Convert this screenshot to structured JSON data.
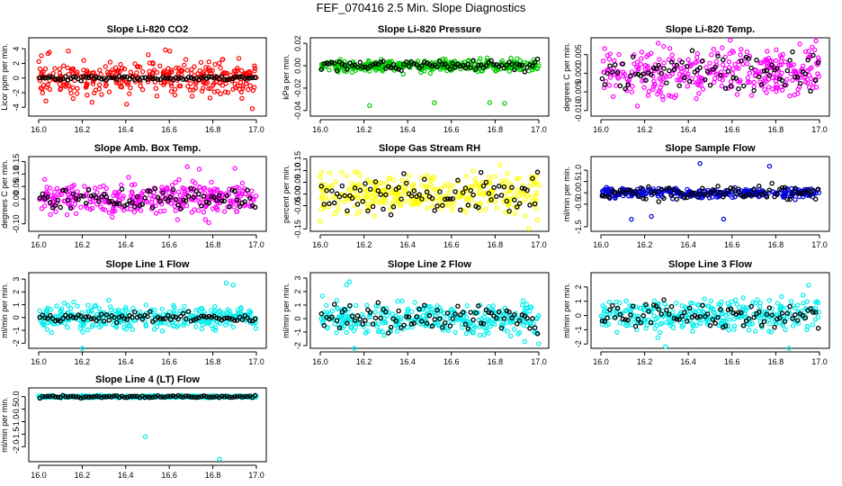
{
  "figure": {
    "title": "FEF_070416  2.5 Min. Slope Diagnostics"
  },
  "chart_data": [
    {
      "type": "scatter",
      "title": "Slope Li-820 CO2",
      "ylabel": "Licor ppm per min.",
      "xlim": [
        16.0,
        17.0
      ],
      "ylim": [
        -5.2,
        5.5
      ],
      "x_ticks": [
        "16.0",
        "16.2",
        "16.4",
        "16.6",
        "16.8",
        "17.0"
      ],
      "y_ticks": [
        "-4",
        "-2",
        "0",
        "2",
        "4"
      ],
      "y_tick_values": [
        -4,
        -2,
        0,
        2,
        4
      ],
      "color": "#ff0000",
      "spread": 1.8,
      "outlier_count": 5,
      "outlier_amp": 4.2,
      "black_spread": 0.18,
      "seed": 11
    },
    {
      "type": "scatter",
      "title": "Slope Li-820 Pressure",
      "ylabel": "kPa per min.",
      "xlim": [
        16.0,
        17.0
      ],
      "ylim": [
        -0.045,
        0.025
      ],
      "x_ticks": [
        "16.0",
        "16.2",
        "16.4",
        "16.6",
        "16.8",
        "17.0"
      ],
      "y_ticks": [
        "-0.04",
        "-0.02",
        "0.00",
        "0.02"
      ],
      "y_tick_values": [
        -0.04,
        -0.02,
        0.0,
        0.02
      ],
      "color": "#00cc00",
      "spread": 0.004,
      "outlier_count": 4,
      "outlier_amp": 0.04,
      "black_spread": 0.004,
      "seed": 23
    },
    {
      "type": "scatter",
      "title": "Slope Li-820 Temp.",
      "ylabel": "degrees C per min.",
      "xlim": [
        16.0,
        17.0
      ],
      "ylim": [
        -0.0115,
        0.0095
      ],
      "x_ticks": [
        "16.0",
        "16.2",
        "16.4",
        "16.6",
        "16.8",
        "17.0"
      ],
      "y_ticks": [
        "-0.010",
        "-0.005",
        "0.000",
        "0.005"
      ],
      "y_tick_values": [
        -0.01,
        -0.005,
        0.0,
        0.005
      ],
      "color": "#ff00ff",
      "spread": 0.0045,
      "outlier_count": 3,
      "outlier_amp": 0.009,
      "black_spread": 0.0035,
      "seed": 37
    },
    {
      "type": "scatter",
      "title": "Slope Amb. Box Temp.",
      "ylabel": "degrees C per min.",
      "xlim": [
        16.0,
        17.0
      ],
      "ylim": [
        -0.13,
        0.17
      ],
      "x_ticks": [
        "16.0",
        "16.2",
        "16.4",
        "16.6",
        "16.8",
        "17.0"
      ],
      "y_ticks": [
        "-0.10",
        "0.00",
        "0.05",
        "0.10",
        "0.15"
      ],
      "y_tick_values": [
        -0.1,
        0.0,
        0.05,
        0.1,
        0.15
      ],
      "color": "#ff00ff",
      "spread": 0.045,
      "outlier_count": 3,
      "outlier_amp": 0.14,
      "black_spread": 0.03,
      "seed": 41
    },
    {
      "type": "scatter",
      "title": "Slope Gas Stream RH",
      "ylabel": "percent per min.",
      "xlim": [
        16.0,
        17.0
      ],
      "ylim": [
        -0.16,
        0.16
      ],
      "x_ticks": [
        "16.0",
        "16.2",
        "16.4",
        "16.6",
        "16.8",
        "17.0"
      ],
      "y_ticks": [
        "-0.15",
        "-0.05",
        "0.00",
        "0.05",
        "0.10",
        "0.15"
      ],
      "y_tick_values": [
        -0.15,
        -0.05,
        0.0,
        0.05,
        0.1,
        0.15
      ],
      "color": "#ffff00",
      "spread": 0.06,
      "outlier_count": 3,
      "outlier_amp": 0.15,
      "black_spread": 0.06,
      "seed": 53
    },
    {
      "type": "scatter",
      "title": "Slope Sample Flow",
      "ylabel": "ml/min per min.",
      "xlim": [
        16.0,
        17.0
      ],
      "ylim": [
        -1.7,
        1.6
      ],
      "x_ticks": [
        "16.0",
        "16.2",
        "16.4",
        "16.6",
        "16.8",
        "17.0"
      ],
      "y_ticks": [
        "-1.5",
        "-0.5",
        "0.0",
        "0.5",
        "1.0"
      ],
      "y_tick_values": [
        -1.5,
        -0.5,
        0.0,
        0.5,
        1.0
      ],
      "color": "#0000dd",
      "spread": 0.15,
      "outlier_count": 5,
      "outlier_amp": 1.3,
      "black_spread": 0.25,
      "seed": 67
    },
    {
      "type": "scatter",
      "title": "Slope Line 1 Flow",
      "ylabel": "ml/min per min.",
      "xlim": [
        16.0,
        17.0
      ],
      "ylim": [
        -2.4,
        3.5
      ],
      "x_ticks": [
        "16.0",
        "16.2",
        "16.4",
        "16.6",
        "16.8",
        "17.0"
      ],
      "y_ticks": [
        "-2",
        "-1",
        "0",
        "1",
        "2",
        "3"
      ],
      "y_tick_values": [
        -2,
        -1,
        0,
        1,
        2,
        3
      ],
      "color": "#00eeee",
      "spread": 0.7,
      "outlier_count": 3,
      "outlier_amp": 3.2,
      "black_spread": 0.25,
      "seed": 71
    },
    {
      "type": "scatter",
      "title": "Slope Line 2 Flow",
      "ylabel": "ml/min per min.",
      "xlim": [
        16.0,
        17.0
      ],
      "ylim": [
        -2.2,
        3.4
      ],
      "x_ticks": [
        "16.0",
        "16.2",
        "16.4",
        "16.6",
        "16.8",
        "17.0"
      ],
      "y_ticks": [
        "-2",
        "-1",
        "0",
        "1",
        "2",
        "3"
      ],
      "y_tick_values": [
        -2,
        -1,
        0,
        1,
        2,
        3
      ],
      "color": "#00eeee",
      "spread": 0.9,
      "outlier_count": 3,
      "outlier_amp": 3.0,
      "black_spread": 0.8,
      "seed": 83
    },
    {
      "type": "scatter",
      "title": "Slope Line 3 Flow",
      "ylabel": "ml/min per min.",
      "xlim": [
        16.0,
        17.0
      ],
      "ylim": [
        -2.3,
        3.0
      ],
      "x_ticks": [
        "16.0",
        "16.2",
        "16.4",
        "16.6",
        "16.8",
        "17.0"
      ],
      "y_ticks": [
        "-2",
        "-1",
        "0",
        "1",
        "2"
      ],
      "y_tick_values": [
        -2,
        -1,
        0,
        1,
        2
      ],
      "color": "#00eeee",
      "spread": 0.8,
      "outlier_count": 3,
      "outlier_amp": 2.6,
      "black_spread": 0.6,
      "seed": 97
    },
    {
      "type": "scatter",
      "title": "Slope Line 4 (LT) Flow",
      "ylabel": "ml/min per min.",
      "xlim": [
        16.0,
        17.0
      ],
      "ylim": [
        -2.6,
        0.35
      ],
      "x_ticks": [
        "16.0",
        "16.2",
        "16.4",
        "16.6",
        "16.8",
        "17.0"
      ],
      "y_ticks": [
        "-2.0",
        "-1.5",
        "-1.0",
        "-0.5",
        "0.0"
      ],
      "y_tick_values": [
        -2.0,
        -1.5,
        -1.0,
        -0.5,
        0.0
      ],
      "color": "#00eeee",
      "spread": 0.03,
      "outlier_count": 0,
      "outlier_amp": 0,
      "black_spread": 0.03,
      "seed": 101,
      "outliers": [
        {
          "x": 16.49,
          "y": -1.6
        },
        {
          "x": 16.83,
          "y": -2.5
        }
      ]
    }
  ]
}
